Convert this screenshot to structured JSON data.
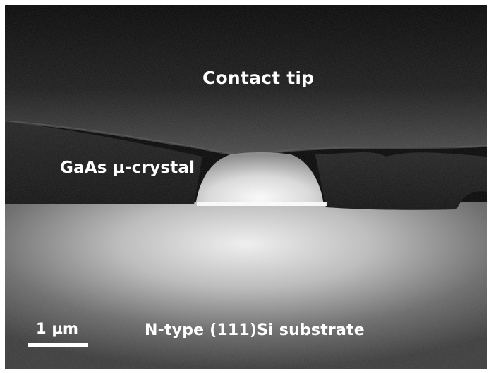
{
  "labels": {
    "contact_tip": "Contact tip",
    "crystal": "GaAs μ-crystal",
    "substrate": "N-type (111)Si substrate"
  },
  "scale_bar": {
    "text": "1 μm"
  },
  "colors": {
    "background": "#000000",
    "label_text": "#ffffff",
    "substrate_glow": "#f2f2f2",
    "crystal_glow": "#ffffff"
  }
}
